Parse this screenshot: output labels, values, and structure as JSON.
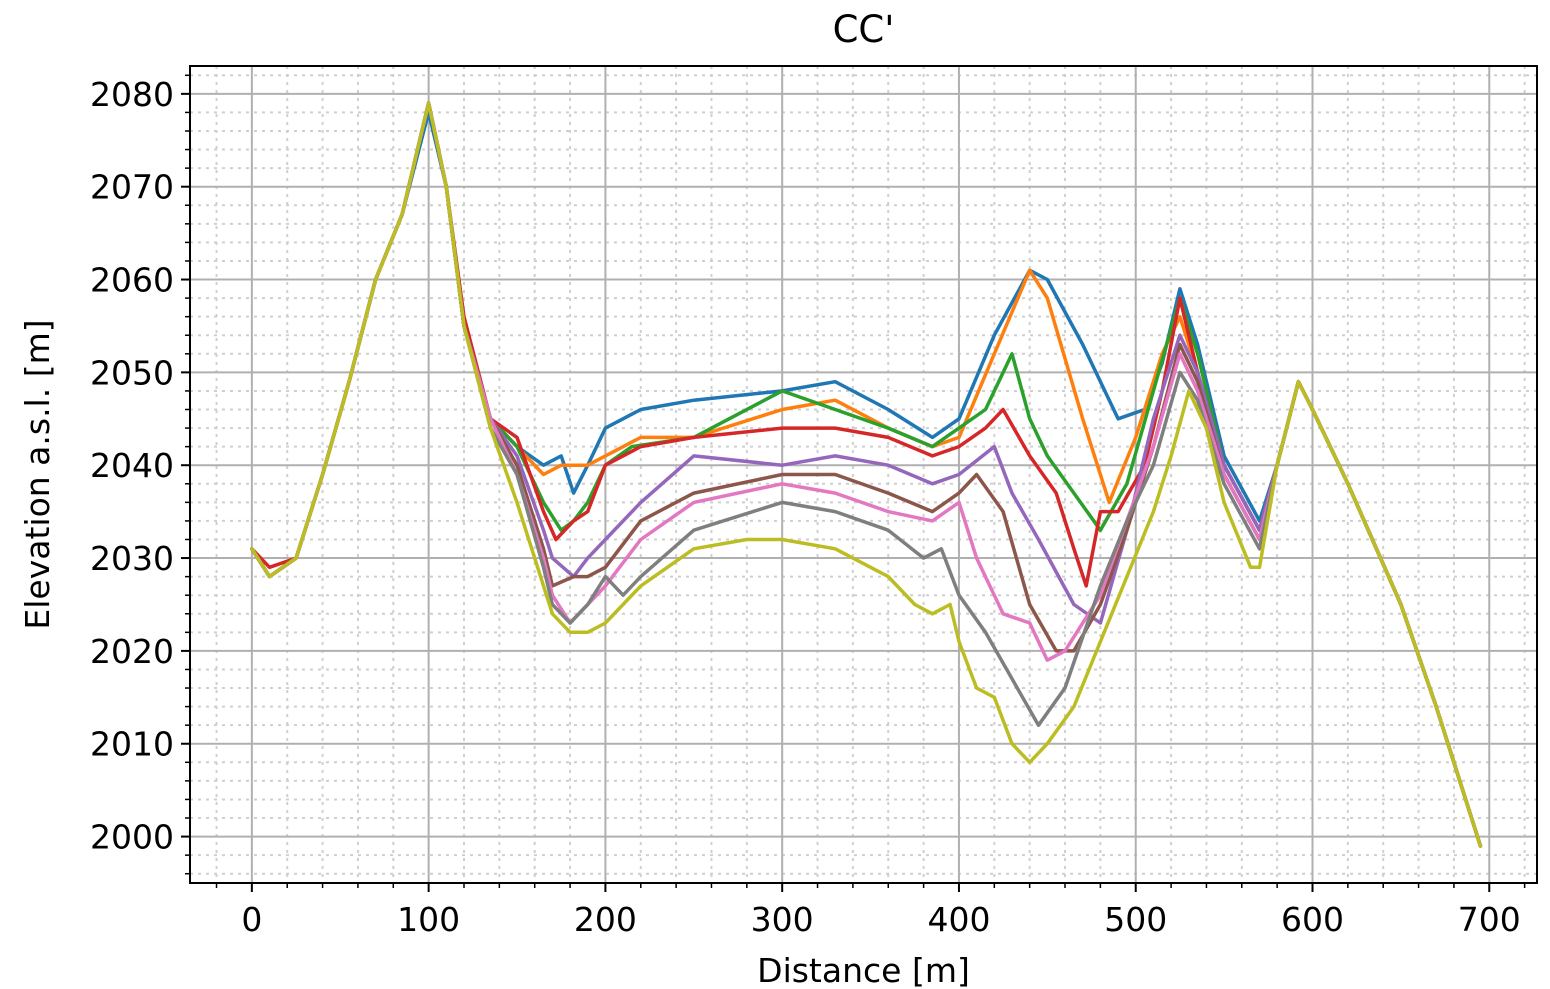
{
  "chart_data": {
    "type": "line",
    "title": "CC'",
    "xlabel": "Distance [m]",
    "ylabel": "Elevation a.s.l. [m]",
    "xlim": [
      -35,
      727
    ],
    "ylim": [
      1995,
      2083
    ],
    "xticks": [
      0,
      100,
      200,
      300,
      400,
      500,
      600,
      700
    ],
    "yticks": [
      2000,
      2010,
      2020,
      2030,
      2040,
      2050,
      2060,
      2070,
      2080
    ],
    "grid": {
      "major": true,
      "minor": true
    },
    "legend": "none",
    "series": [
      {
        "color": "#1f77b4",
        "x": [
          0,
          10,
          25,
          40,
          55,
          70,
          85,
          100,
          110,
          120,
          135,
          150,
          165,
          175,
          182,
          190,
          200,
          220,
          250,
          300,
          330,
          360,
          385,
          400,
          420,
          440,
          450,
          470,
          490,
          505,
          515,
          525,
          535,
          550,
          570,
          580,
          592,
          600,
          620,
          650,
          670,
          695
        ],
        "y": [
          2031,
          2028,
          2030,
          2039,
          2049,
          2060,
          2067,
          2078,
          2070,
          2055,
          2045,
          2042,
          2040,
          2041,
          2037,
          2040,
          2044,
          2046,
          2047,
          2048,
          2049,
          2046,
          2043,
          2045,
          2054,
          2061,
          2060,
          2053,
          2045,
          2046,
          2051,
          2059,
          2053,
          2041,
          2034,
          2040,
          2049,
          2046,
          2038,
          2025,
          2014,
          1999
        ]
      },
      {
        "color": "#ff7f0e",
        "x": [
          0,
          10,
          25,
          40,
          55,
          70,
          85,
          100,
          110,
          120,
          135,
          150,
          165,
          175,
          182,
          190,
          200,
          220,
          250,
          300,
          330,
          360,
          385,
          400,
          420,
          440,
          450,
          470,
          485,
          500,
          515,
          525,
          535,
          550,
          570,
          580,
          592,
          600,
          620,
          650,
          670,
          695
        ],
        "y": [
          2031,
          2028,
          2030,
          2039,
          2049,
          2060,
          2067,
          2079,
          2070,
          2055,
          2045,
          2042,
          2039,
          2040,
          2040,
          2040,
          2041,
          2043,
          2043,
          2046,
          2047,
          2044,
          2042,
          2043,
          2052,
          2061,
          2058,
          2045,
          2036,
          2043,
          2052,
          2056,
          2050,
          2040,
          2033,
          2040,
          2049,
          2046,
          2038,
          2025,
          2014,
          1999
        ]
      },
      {
        "color": "#2ca02c",
        "x": [
          0,
          10,
          25,
          40,
          55,
          70,
          85,
          100,
          110,
          120,
          135,
          150,
          165,
          175,
          182,
          190,
          200,
          215,
          250,
          300,
          330,
          360,
          385,
          400,
          415,
          430,
          440,
          450,
          465,
          480,
          495,
          510,
          525,
          535,
          550,
          570,
          580,
          592,
          600,
          620,
          650,
          670,
          695
        ],
        "y": [
          2031,
          2028,
          2030,
          2039,
          2049,
          2060,
          2067,
          2079,
          2070,
          2055,
          2045,
          2042,
          2036,
          2033,
          2034,
          2036,
          2040,
          2042,
          2043,
          2048,
          2046,
          2044,
          2042,
          2044,
          2046,
          2052,
          2045,
          2041,
          2037,
          2033,
          2038,
          2048,
          2058,
          2052,
          2040,
          2033,
          2040,
          2049,
          2046,
          2038,
          2025,
          2014,
          1999
        ]
      },
      {
        "color": "#d62728",
        "x": [
          0,
          10,
          25,
          40,
          55,
          70,
          85,
          100,
          110,
          120,
          135,
          150,
          165,
          172,
          182,
          190,
          200,
          220,
          250,
          300,
          330,
          360,
          385,
          400,
          415,
          425,
          440,
          455,
          465,
          472,
          480,
          490,
          505,
          515,
          525,
          535,
          550,
          570,
          580,
          592,
          600,
          620,
          650,
          670,
          695
        ],
        "y": [
          2031,
          2029,
          2030,
          2039,
          2049,
          2060,
          2067,
          2079,
          2070,
          2056,
          2045,
          2043,
          2035,
          2032,
          2034,
          2035,
          2040,
          2042,
          2043,
          2044,
          2044,
          2043,
          2041,
          2042,
          2044,
          2046,
          2041,
          2037,
          2031,
          2027,
          2035,
          2035,
          2040,
          2048,
          2058,
          2050,
          2040,
          2033,
          2040,
          2049,
          2046,
          2038,
          2025,
          2014,
          1999
        ]
      },
      {
        "color": "#9467bd",
        "x": [
          0,
          10,
          25,
          40,
          55,
          70,
          85,
          100,
          110,
          120,
          135,
          150,
          165,
          170,
          182,
          190,
          200,
          220,
          250,
          300,
          330,
          360,
          385,
          400,
          420,
          430,
          445,
          465,
          480,
          495,
          510,
          525,
          535,
          550,
          570,
          580,
          592,
          600,
          620,
          650,
          670,
          695
        ],
        "y": [
          2031,
          2028,
          2030,
          2039,
          2049,
          2060,
          2067,
          2079,
          2070,
          2055,
          2045,
          2041,
          2033,
          2030,
          2028,
          2030,
          2032,
          2036,
          2041,
          2040,
          2041,
          2040,
          2038,
          2039,
          2042,
          2037,
          2032,
          2025,
          2023,
          2033,
          2045,
          2054,
          2050,
          2040,
          2033,
          2040,
          2049,
          2046,
          2038,
          2025,
          2014,
          1999
        ]
      },
      {
        "color": "#8c564b",
        "x": [
          0,
          10,
          25,
          40,
          55,
          70,
          85,
          100,
          110,
          120,
          135,
          150,
          165,
          170,
          182,
          190,
          200,
          220,
          250,
          300,
          330,
          360,
          385,
          400,
          410,
          425,
          440,
          455,
          465,
          480,
          495,
          510,
          525,
          535,
          550,
          570,
          580,
          592,
          600,
          620,
          650,
          670,
          695
        ],
        "y": [
          2031,
          2028,
          2030,
          2039,
          2049,
          2060,
          2067,
          2079,
          2070,
          2055,
          2045,
          2040,
          2031,
          2027,
          2028,
          2028,
          2029,
          2034,
          2037,
          2039,
          2039,
          2037,
          2035,
          2037,
          2039,
          2035,
          2025,
          2020,
          2020,
          2025,
          2033,
          2042,
          2053,
          2049,
          2039,
          2032,
          2040,
          2049,
          2046,
          2038,
          2025,
          2014,
          1999
        ]
      },
      {
        "color": "#e377c2",
        "x": [
          0,
          10,
          25,
          40,
          55,
          70,
          85,
          100,
          110,
          120,
          135,
          150,
          165,
          170,
          180,
          190,
          200,
          220,
          250,
          300,
          330,
          360,
          385,
          400,
          410,
          425,
          440,
          450,
          460,
          480,
          495,
          510,
          525,
          535,
          550,
          570,
          580,
          592,
          600,
          620,
          650,
          670,
          695
        ],
        "y": [
          2031,
          2028,
          2030,
          2039,
          2049,
          2060,
          2067,
          2079,
          2070,
          2055,
          2045,
          2039,
          2030,
          2026,
          2023,
          2025,
          2027,
          2032,
          2036,
          2038,
          2037,
          2035,
          2034,
          2036,
          2030,
          2024,
          2023,
          2019,
          2020,
          2026,
          2034,
          2042,
          2052,
          2048,
          2039,
          2032,
          2040,
          2049,
          2046,
          2038,
          2025,
          2014,
          1999
        ]
      },
      {
        "color": "#7f7f7f",
        "x": [
          0,
          10,
          25,
          40,
          55,
          70,
          85,
          100,
          110,
          120,
          135,
          150,
          165,
          170,
          180,
          190,
          200,
          210,
          220,
          250,
          300,
          330,
          360,
          380,
          390,
          400,
          415,
          430,
          445,
          460,
          480,
          495,
          510,
          525,
          535,
          550,
          570,
          580,
          592,
          600,
          620,
          650,
          670,
          695
        ],
        "y": [
          2031,
          2028,
          2030,
          2039,
          2049,
          2060,
          2067,
          2079,
          2070,
          2055,
          2044,
          2039,
          2029,
          2025,
          2023,
          2025,
          2028,
          2026,
          2028,
          2033,
          2036,
          2035,
          2033,
          2030,
          2031,
          2026,
          2022,
          2017,
          2012,
          2016,
          2027,
          2034,
          2040,
          2050,
          2047,
          2038,
          2031,
          2040,
          2049,
          2046,
          2038,
          2025,
          2014,
          1999
        ]
      },
      {
        "color": "#bcbd22",
        "x": [
          0,
          10,
          25,
          40,
          55,
          70,
          85,
          100,
          110,
          120,
          135,
          150,
          165,
          170,
          180,
          190,
          200,
          220,
          250,
          280,
          300,
          330,
          360,
          375,
          385,
          395,
          400,
          410,
          420,
          430,
          440,
          450,
          465,
          480,
          495,
          510,
          520,
          530,
          540,
          550,
          565,
          570,
          580,
          592,
          600,
          620,
          650,
          670,
          695
        ],
        "y": [
          2031,
          2028,
          2030,
          2039,
          2049,
          2060,
          2067,
          2079,
          2070,
          2055,
          2044,
          2036,
          2027,
          2024,
          2022,
          2022,
          2023,
          2027,
          2031,
          2032,
          2032,
          2031,
          2028,
          2025,
          2024,
          2025,
          2021,
          2016,
          2015,
          2010,
          2008,
          2010,
          2014,
          2021,
          2028,
          2035,
          2041,
          2048,
          2044,
          2036,
          2029,
          2029,
          2040,
          2049,
          2046,
          2038,
          2025,
          2014,
          1999
        ]
      }
    ]
  }
}
